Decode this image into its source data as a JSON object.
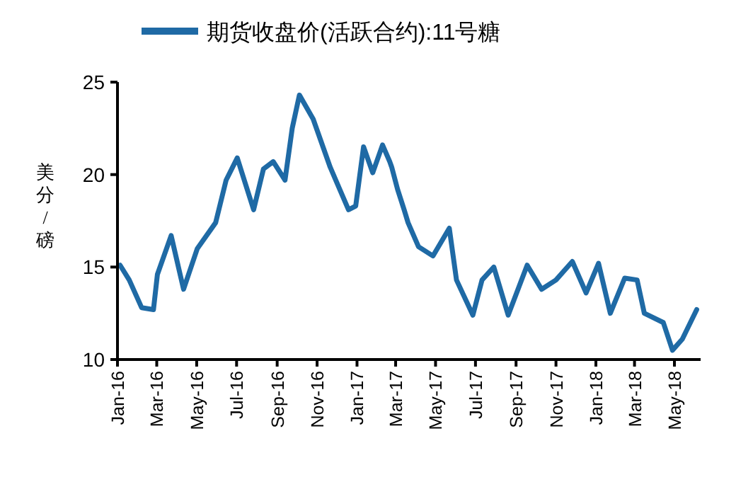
{
  "chart_data": {
    "type": "line",
    "ylabel": "美分/磅",
    "legend": "top",
    "marker": "none",
    "line_style": "solid",
    "grid": false,
    "xlim": [
      "2016-01-01",
      "2018-06-10"
    ],
    "ylim": [
      10,
      25
    ],
    "yticks": [
      10,
      15,
      20,
      25
    ],
    "xticks": [
      {
        "value": "2016-01",
        "label": "Jan-16"
      },
      {
        "value": "2016-03",
        "label": "Mar-16"
      },
      {
        "value": "2016-05",
        "label": "May-16"
      },
      {
        "value": "2016-07",
        "label": "Jul-16"
      },
      {
        "value": "2016-09",
        "label": "Sep-16"
      },
      {
        "value": "2016-11",
        "label": "Nov-16"
      },
      {
        "value": "2017-01",
        "label": "Jan-17"
      },
      {
        "value": "2017-03",
        "label": "Mar-17"
      },
      {
        "value": "2017-05",
        "label": "May-17"
      },
      {
        "value": "2017-07",
        "label": "Jul-17"
      },
      {
        "value": "2017-09",
        "label": "Sep-17"
      },
      {
        "value": "2017-11",
        "label": "Nov-17"
      },
      {
        "value": "2018-01",
        "label": "Jan-18"
      },
      {
        "value": "2018-03",
        "label": "Mar-18"
      },
      {
        "value": "2018-05",
        "label": "May-18"
      }
    ],
    "series": [
      {
        "name": "期货收盘价(活跃合约):11号糖",
        "color": "#1f6aa5",
        "x": [
          "2016-01-05",
          "2016-01-19",
          "2016-02-07",
          "2016-02-25",
          "2016-03-02",
          "2016-03-23",
          "2016-04-11",
          "2016-05-02",
          "2016-05-30",
          "2016-06-15",
          "2016-07-02",
          "2016-07-27",
          "2016-08-11",
          "2016-08-26",
          "2016-09-13",
          "2016-09-24",
          "2016-10-05",
          "2016-10-26",
          "2016-11-21",
          "2016-12-19",
          "2016-12-30",
          "2017-01-11",
          "2017-01-25",
          "2017-02-09",
          "2017-02-20",
          "2017-02-23",
          "2017-03-04",
          "2017-03-14",
          "2017-03-20",
          "2017-04-05",
          "2017-04-27",
          "2017-05-22",
          "2017-06-02",
          "2017-06-27",
          "2017-07-11",
          "2017-07-29",
          "2017-08-20",
          "2017-09-18",
          "2017-10-10",
          "2017-11-01",
          "2017-11-26",
          "2017-12-17",
          "2018-01-05",
          "2018-01-23",
          "2018-02-14",
          "2018-03-05",
          "2018-03-16",
          "2018-04-14",
          "2018-04-28",
          "2018-05-13",
          "2018-06-04"
        ],
        "values": [
          15.1,
          14.3,
          12.8,
          12.7,
          14.6,
          16.7,
          13.8,
          16.0,
          17.4,
          19.7,
          20.9,
          18.1,
          20.3,
          20.7,
          19.7,
          22.5,
          24.3,
          23.0,
          20.4,
          18.1,
          18.3,
          21.5,
          20.1,
          21.6,
          20.7,
          20.4,
          19.2,
          18.1,
          17.4,
          16.1,
          15.6,
          17.1,
          14.3,
          12.4,
          14.3,
          15.0,
          12.4,
          15.1,
          13.8,
          14.3,
          15.3,
          13.6,
          15.2,
          12.5,
          14.4,
          14.3,
          12.5,
          12.0,
          10.5,
          11.1,
          12.7
        ]
      }
    ]
  }
}
